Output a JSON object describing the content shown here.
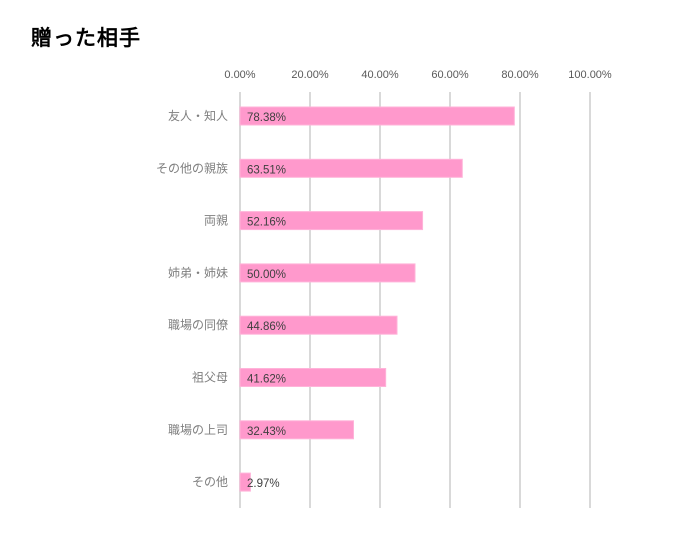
{
  "chart_data": {
    "type": "bar",
    "orientation": "horizontal",
    "title": "贈った相手",
    "xlabel": "",
    "ylabel": "",
    "xlim": [
      0,
      100
    ],
    "ticks": [
      "0.00%",
      "20.00%",
      "40.00%",
      "60.00%",
      "80.00%",
      "100.00%"
    ],
    "tick_values": [
      0,
      20,
      40,
      60,
      80,
      100
    ],
    "axis_position": "top",
    "grid": true,
    "categories": [
      "友人・知人",
      "その他の親族",
      "両親",
      "姉弟・姉妹",
      "職場の同僚",
      "祖父母",
      "職場の上司",
      "その他"
    ],
    "values": [
      78.38,
      63.51,
      52.16,
      50.0,
      44.86,
      41.62,
      32.43,
      2.97
    ],
    "data_labels": [
      "78.38%",
      "63.51%",
      "52.16%",
      "50.00%",
      "44.86%",
      "41.62%",
      "32.43%",
      "2.97%"
    ],
    "colors": {
      "bar": "#FF99CC",
      "grid": "#D9D9D9",
      "category_text": "#7F7F7F",
      "label_text": "#404040"
    }
  }
}
